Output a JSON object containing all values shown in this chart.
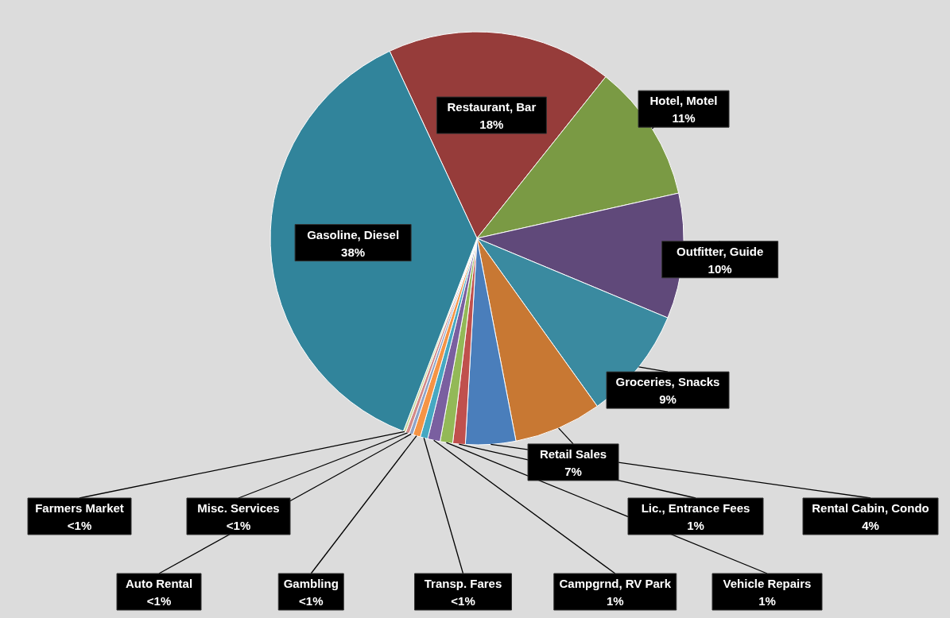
{
  "chart_data": {
    "type": "pie",
    "categories": [
      "Restaurant, Bar",
      "Hotel, Motel",
      "Outfitter, Guide",
      "Groceries, Snacks",
      "Retail Sales",
      "Rental Cabin, Condo",
      "Lic., Entrance Fees",
      "Vehicle Repairs",
      "Campgrnd, RV Park",
      "Transp. Fares",
      "Gambling",
      "Auto Rental",
      "Misc. Services",
      "Farmers Market",
      "Gasoline, Diesel"
    ],
    "values": [
      18,
      11,
      10,
      9,
      7,
      4,
      1,
      1,
      1,
      0.6,
      0.6,
      0.3,
      0.3,
      0.2,
      38
    ],
    "value_labels": [
      "18%",
      "11%",
      "10%",
      "9%",
      "7%",
      "4%",
      "1%",
      "1%",
      "1%",
      "<1%",
      "<1%",
      "<1%",
      "<1%",
      "<1%",
      "38%"
    ],
    "colors": [
      "#963c3a",
      "#7a9a44",
      "#60497a",
      "#3a8aa0",
      "#c87833",
      "#4a7ebb",
      "#c0504d",
      "#93b957",
      "#7a5fa0",
      "#46a8c2",
      "#f59445",
      "#8fa4c8",
      "#d48a88",
      "#c8d8a0",
      "#31849b"
    ]
  }
}
